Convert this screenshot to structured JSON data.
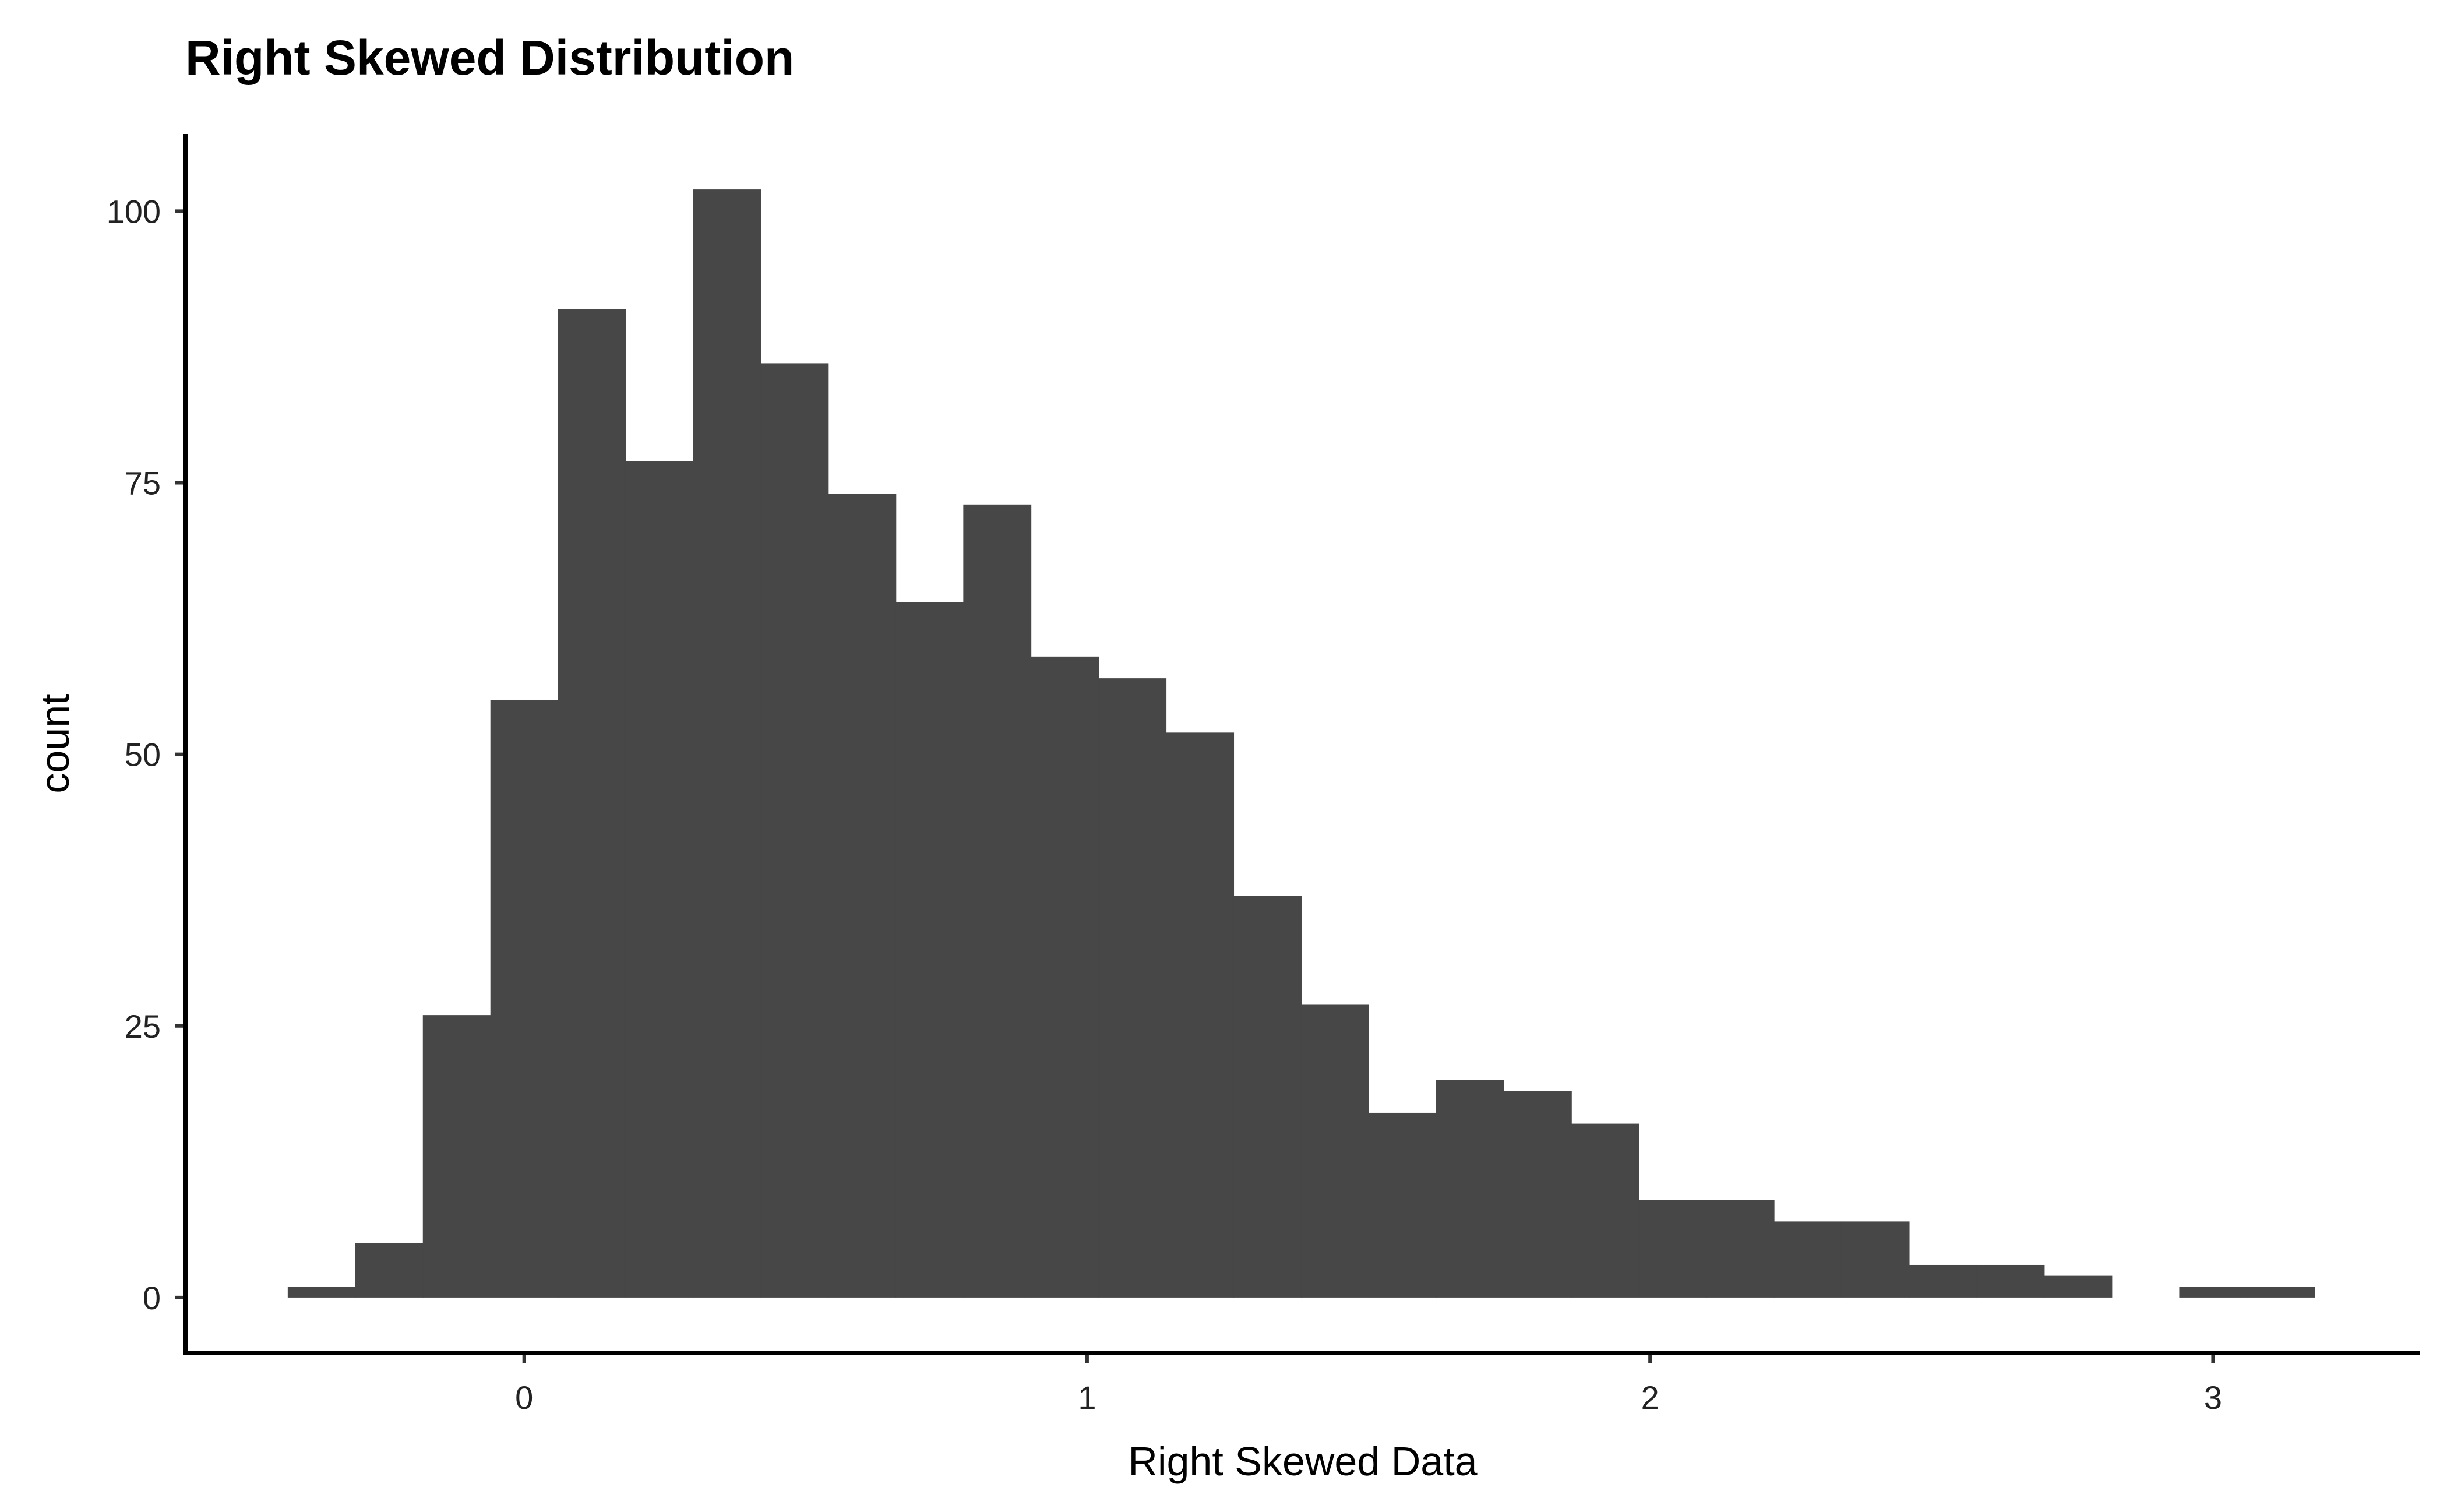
{
  "chart_data": {
    "type": "bar",
    "title": "Right Skewed Distribution",
    "xlabel": "Right Skewed Data",
    "ylabel": "count",
    "bar_color": "#474747",
    "bin_width": 0.1204,
    "bins": [
      {
        "x0": -0.42,
        "count": 1
      },
      {
        "x0": -0.3,
        "count": 5
      },
      {
        "x0": -0.18,
        "count": 26
      },
      {
        "x0": -0.06,
        "count": 55
      },
      {
        "x0": 0.06,
        "count": 91
      },
      {
        "x0": 0.18,
        "count": 77
      },
      {
        "x0": 0.3,
        "count": 102
      },
      {
        "x0": 0.42,
        "count": 86
      },
      {
        "x0": 0.54,
        "count": 74
      },
      {
        "x0": 0.66,
        "count": 64
      },
      {
        "x0": 0.78,
        "count": 73
      },
      {
        "x0": 0.9,
        "count": 59
      },
      {
        "x0": 1.02,
        "count": 57
      },
      {
        "x0": 1.14,
        "count": 52
      },
      {
        "x0": 1.26,
        "count": 37
      },
      {
        "x0": 1.38,
        "count": 27
      },
      {
        "x0": 1.5,
        "count": 17
      },
      {
        "x0": 1.62,
        "count": 20
      },
      {
        "x0": 1.74,
        "count": 19
      },
      {
        "x0": 1.86,
        "count": 16
      },
      {
        "x0": 1.98,
        "count": 9
      },
      {
        "x0": 2.1,
        "count": 9
      },
      {
        "x0": 2.22,
        "count": 7
      },
      {
        "x0": 2.34,
        "count": 7
      },
      {
        "x0": 2.46,
        "count": 3
      },
      {
        "x0": 2.58,
        "count": 3
      },
      {
        "x0": 2.7,
        "count": 2
      },
      {
        "x0": 2.82,
        "count": 0
      },
      {
        "x0": 2.94,
        "count": 1
      },
      {
        "x0": 3.06,
        "count": 1
      }
    ],
    "x_ticks": [
      0,
      1,
      2,
      3
    ],
    "y_ticks": [
      0,
      25,
      50,
      75,
      100
    ],
    "xlim": [
      -0.602,
      3.368
    ],
    "ylim": [
      -5.1,
      107.1
    ],
    "grid": false,
    "legend": "none"
  }
}
